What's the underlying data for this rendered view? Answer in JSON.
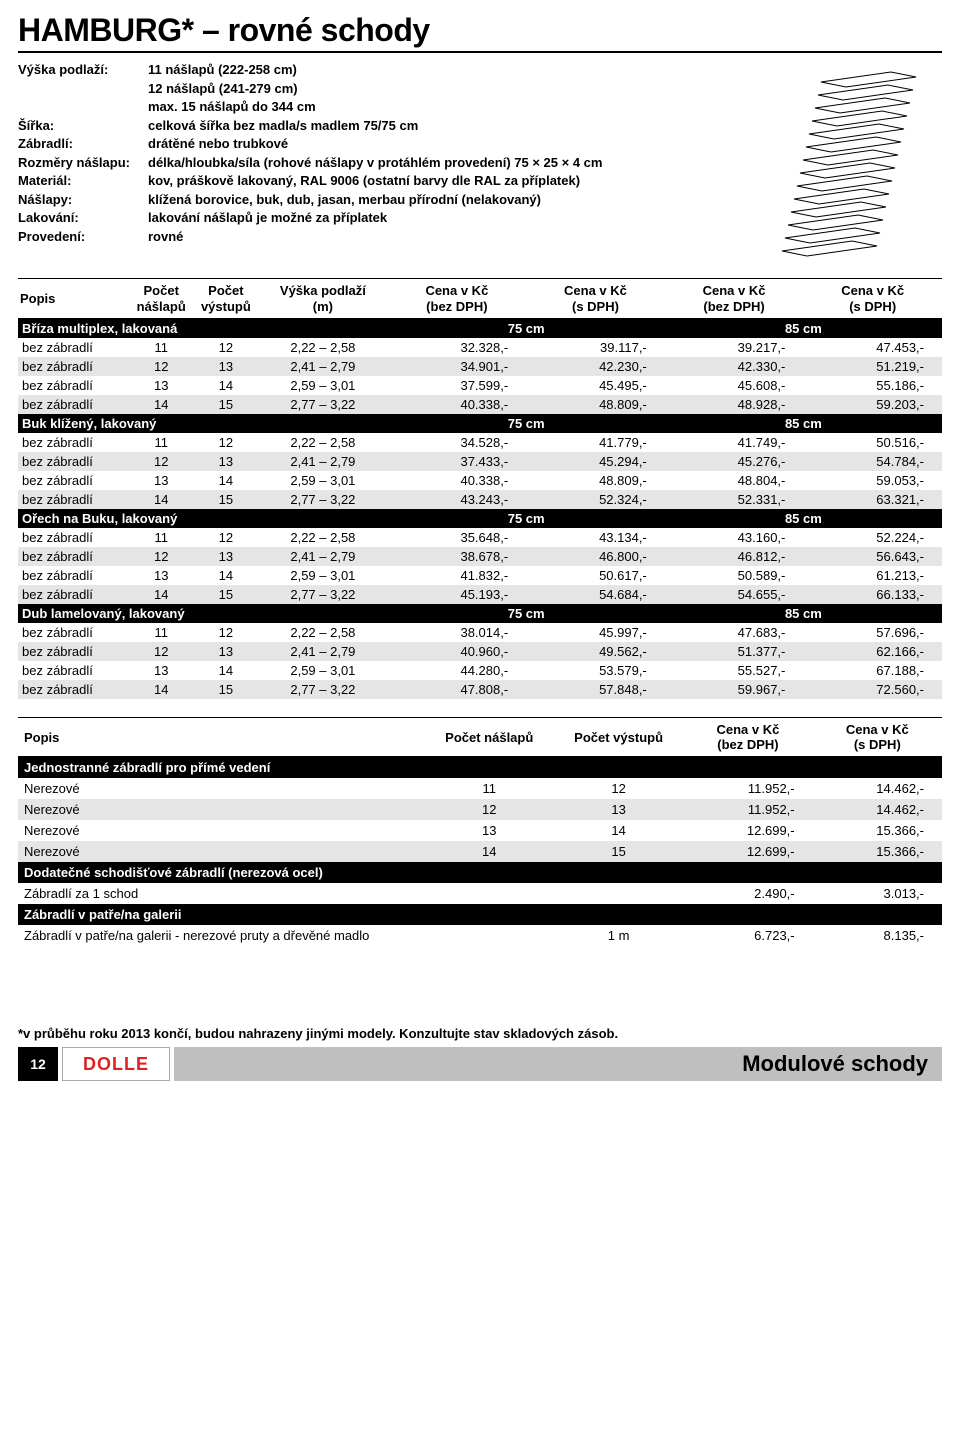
{
  "title": "HAMBURG* – rovné schody",
  "specs": [
    {
      "label": "Výška podlaží:",
      "value": "11 nášlapů (222-258 cm)\n12 nášlapů (241-279 cm)\nmax. 15 nášlapů do 344 cm"
    },
    {
      "label": "Šířka:",
      "value": "celková šířka bez madla/s madlem 75/75 cm"
    },
    {
      "label": "Zábradlí:",
      "value": "drátěné nebo trubkové"
    },
    {
      "label": "Rozměry nášlapu:",
      "value": "délka/hloubka/síla (rohové nášlapy v protáhlém provedení) 75 × 25 × 4 cm"
    },
    {
      "label": "Materiál:",
      "value": "kov, práškově lakovaný, RAL 9006 (ostatní barvy dle RAL za příplatek)"
    },
    {
      "label": "Nášlapy:",
      "value": "klížená borovice, buk, dub, jasan, merbau přírodní (nelakovaný)"
    },
    {
      "label": "Lakování:",
      "value": "lakování nášlapů je možné za příplatek"
    },
    {
      "label": "Provedení:",
      "value": "rovné"
    }
  ],
  "main_headers": [
    "Popis",
    "Počet\nnášlapů",
    "Počet\nvýstupů",
    "Výška podlaží\n(m)",
    "Cena v Kč\n(bez DPH)",
    "Cena v Kč\n(s DPH)",
    "Cena v Kč\n(bez DPH)",
    "Cena v Kč\n(s DPH)"
  ],
  "width_labels": {
    "w1": "75 cm",
    "w2": "85 cm"
  },
  "sections": [
    {
      "title": "Bříza multiplex, lakovaná",
      "rows": [
        {
          "c": [
            "bez zábradlí",
            "11",
            "12",
            "2,22 – 2,58",
            "32.328,-",
            "39.117,-",
            "39.217,-",
            "47.453,-"
          ]
        },
        {
          "c": [
            "bez zábradlí",
            "12",
            "13",
            "2,41 – 2,79",
            "34.901,-",
            "42.230,-",
            "42.330,-",
            "51.219,-"
          ]
        },
        {
          "c": [
            "bez zábradlí",
            "13",
            "14",
            "2,59 – 3,01",
            "37.599,-",
            "45.495,-",
            "45.608,-",
            "55.186,-"
          ]
        },
        {
          "c": [
            "bez zábradlí",
            "14",
            "15",
            "2,77 – 3,22",
            "40.338,-",
            "48.809,-",
            "48.928,-",
            "59.203,-"
          ]
        }
      ]
    },
    {
      "title": "Buk klížený, lakovaný",
      "rows": [
        {
          "c": [
            "bez zábradlí",
            "11",
            "12",
            "2,22 – 2,58",
            "34.528,-",
            "41.779,-",
            "41.749,-",
            "50.516,-"
          ]
        },
        {
          "c": [
            "bez zábradlí",
            "12",
            "13",
            "2,41 – 2,79",
            "37.433,-",
            "45.294,-",
            "45.276,-",
            "54.784,-"
          ]
        },
        {
          "c": [
            "bez zábradlí",
            "13",
            "14",
            "2,59 – 3,01",
            "40.338,-",
            "48.809,-",
            "48.804,-",
            "59.053,-"
          ]
        },
        {
          "c": [
            "bez zábradlí",
            "14",
            "15",
            "2,77 – 3,22",
            "43.243,-",
            "52.324,-",
            "52.331,-",
            "63.321,-"
          ]
        }
      ]
    },
    {
      "title": "Ořech na Buku, lakovaný",
      "rows": [
        {
          "c": [
            "bez zábradlí",
            "11",
            "12",
            "2,22 – 2,58",
            "35.648,-",
            "43.134,-",
            "43.160,-",
            "52.224,-"
          ]
        },
        {
          "c": [
            "bez zábradlí",
            "12",
            "13",
            "2,41 – 2,79",
            "38.678,-",
            "46.800,-",
            "46.812,-",
            "56.643,-"
          ]
        },
        {
          "c": [
            "bez zábradlí",
            "13",
            "14",
            "2,59 – 3,01",
            "41.832,-",
            "50.617,-",
            "50.589,-",
            "61.213,-"
          ]
        },
        {
          "c": [
            "bez zábradlí",
            "14",
            "15",
            "2,77 – 3,22",
            "45.193,-",
            "54.684,-",
            "54.655,-",
            "66.133,-"
          ]
        }
      ]
    },
    {
      "title": "Dub lamelovaný, lakovaný",
      "rows": [
        {
          "c": [
            "bez zábradlí",
            "11",
            "12",
            "2,22 – 2,58",
            "38.014,-",
            "45.997,-",
            "47.683,-",
            "57.696,-"
          ]
        },
        {
          "c": [
            "bez zábradlí",
            "12",
            "13",
            "2,41 – 2,79",
            "40.960,-",
            "49.562,-",
            "51.377,-",
            "62.166,-"
          ]
        },
        {
          "c": [
            "bez zábradlí",
            "13",
            "14",
            "2,59 – 3,01",
            "44.280,-",
            "53.579,-",
            "55.527,-",
            "67.188,-"
          ]
        },
        {
          "c": [
            "bez zábradlí",
            "14",
            "15",
            "2,77 – 3,22",
            "47.808,-",
            "57.848,-",
            "59.967,-",
            "72.560,-"
          ]
        }
      ]
    }
  ],
  "second_headers": [
    "Popis",
    "Počet nášlapů",
    "Počet výstupů",
    "Cena v Kč\n(bez DPH)",
    "Cena v Kč\n(s DPH)"
  ],
  "second_sections": [
    {
      "title": "Jednostranné zábradlí pro přímé vedení",
      "rows": [
        {
          "c": [
            "Nerezové",
            "11",
            "12",
            "11.952,-",
            "14.462,-"
          ]
        },
        {
          "c": [
            "Nerezové",
            "12",
            "13",
            "11.952,-",
            "14.462,-"
          ]
        },
        {
          "c": [
            "Nerezové",
            "13",
            "14",
            "12.699,-",
            "15.366,-"
          ]
        },
        {
          "c": [
            "Nerezové",
            "14",
            "15",
            "12.699,-",
            "15.366,-"
          ]
        }
      ]
    },
    {
      "title": "Dodatečné schodišťové zábradlí (nerezová ocel)",
      "rows": [
        {
          "c": [
            "Zábradlí za 1 schod",
            "",
            "",
            "2.490,-",
            "3.013,-"
          ]
        }
      ]
    },
    {
      "title": "Zábradlí v patře/na galerii",
      "rows": [
        {
          "c": [
            "Zábradlí v patře/na galerii - nerezové pruty a dřevěné madlo",
            "",
            "1 m",
            "6.723,-",
            "8.135,-"
          ]
        }
      ]
    }
  ],
  "footnote": "*v průběhu roku 2013 končí, budou nahrazeny jinými modely. Konzultujte stav skladových zásob.",
  "footer": {
    "page": "12",
    "logo": "DOLLE",
    "text": "Modulové schody"
  }
}
